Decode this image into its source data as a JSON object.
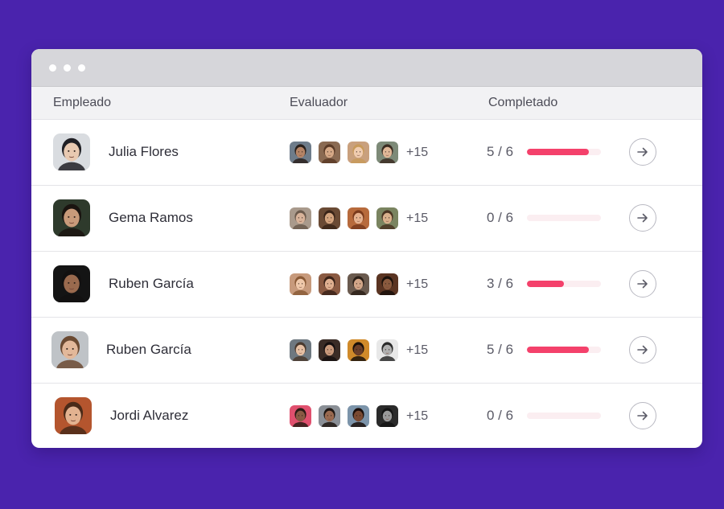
{
  "header": {
    "employee": "Empleado",
    "evaluator": "Evaluador",
    "completed": "Completado"
  },
  "colors": {
    "background": "#4a23ad",
    "progress": "#f4416b",
    "track": "#fbeef1"
  },
  "rows": [
    {
      "name": "Julia Flores",
      "more": "+15",
      "done": 5,
      "total": 6,
      "score": "5 / 6",
      "progress": 0.833,
      "avatar": {
        "bg": "#d9dce0",
        "skin": "#e8c9b1",
        "hair": "#1f1f24"
      },
      "evaluators": [
        {
          "bg": "#6e7c8a",
          "skin": "#b58466",
          "hair": "#2a211c"
        },
        {
          "bg": "#8a6a52",
          "skin": "#d6a987",
          "hair": "#5a3a26"
        },
        {
          "bg": "#c9a07d",
          "skin": "#f0ccb0",
          "hair": "#c89a5a"
        },
        {
          "bg": "#7d8a78",
          "skin": "#e0b797",
          "hair": "#3b2c22"
        }
      ]
    },
    {
      "name": "Gema Ramos",
      "more": "+15",
      "done": 0,
      "total": 6,
      "score": "0 / 6",
      "progress": 0,
      "avatar": {
        "bg": "#2e3a2c",
        "skin": "#c89a7a",
        "hair": "#1a1410"
      },
      "evaluators": [
        {
          "bg": "#a99a8c",
          "skin": "#d8b39a",
          "hair": "#6b5a4c"
        },
        {
          "bg": "#6a4a34",
          "skin": "#d4a47e",
          "hair": "#3a2418"
        },
        {
          "bg": "#b76a3c",
          "skin": "#e6b290",
          "hair": "#7a3a1c"
        },
        {
          "bg": "#7a8460",
          "skin": "#d9b08c",
          "hair": "#4a3422"
        }
      ]
    },
    {
      "name": "Ruben García",
      "more": "+15",
      "done": 3,
      "total": 6,
      "score": "3 / 6",
      "progress": 0.5,
      "avatar": {
        "bg": "#141414",
        "skin": "#9a6a4e",
        "hair": "#121010"
      },
      "evaluators": [
        {
          "bg": "#c79a7c",
          "skin": "#efc8aa",
          "hair": "#8a5a36"
        },
        {
          "bg": "#8a5a42",
          "skin": "#e0b090",
          "hair": "#3a2218"
        },
        {
          "bg": "#6a5a4e",
          "skin": "#d2a688",
          "hair": "#2c2018"
        },
        {
          "bg": "#5a3422",
          "skin": "#8a5a3e",
          "hair": "#1a100a"
        }
      ]
    },
    {
      "name": "Ruben García",
      "more": "+15",
      "done": 5,
      "total": 6,
      "score": "5 / 6",
      "progress": 0.833,
      "avatar": {
        "bg": "#bfc3c7",
        "skin": "#e2b89a",
        "hair": "#6b4a32"
      },
      "evaluators": [
        {
          "bg": "#6e7880",
          "skin": "#e6c0a4",
          "hair": "#4a3a2e"
        },
        {
          "bg": "#3a2c26",
          "skin": "#c99a7c",
          "hair": "#161010"
        },
        {
          "bg": "#d08a2a",
          "skin": "#6a3e28",
          "hair": "#1a100a"
        },
        {
          "bg": "#e8e8e8",
          "skin": "#b0b0b0",
          "hair": "#2a2a2a"
        }
      ]
    },
    {
      "name": "Jordi Alvarez",
      "more": "+15",
      "done": 0,
      "total": 6,
      "score": "0 / 6",
      "progress": 0,
      "avatar": {
        "bg": "#b4552e",
        "skin": "#e2b290",
        "hair": "#4a2a18"
      },
      "evaluators": [
        {
          "bg": "#e0506e",
          "skin": "#8a5a44",
          "hair": "#2a1a14"
        },
        {
          "bg": "#8a8f96",
          "skin": "#9a6a50",
          "hair": "#1e1612"
        },
        {
          "bg": "#7c94aa",
          "skin": "#7a4a32",
          "hair": "#1a0e0a"
        },
        {
          "bg": "#2a2a2a",
          "skin": "#9a9a9a",
          "hair": "#141414"
        }
      ]
    }
  ]
}
